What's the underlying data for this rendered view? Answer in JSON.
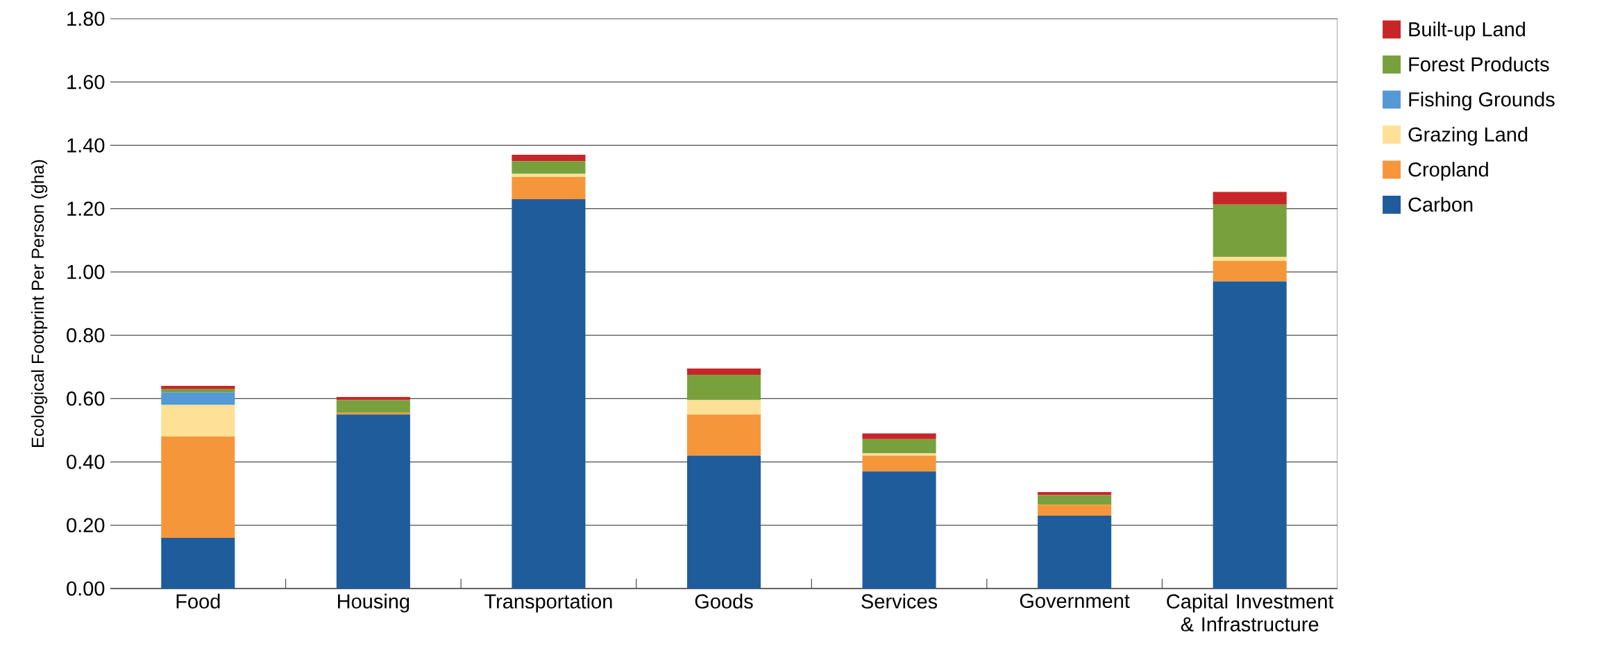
{
  "chart_data": {
    "type": "bar",
    "stacked": true,
    "ylabel": "Ecological Footprint Per Person (gha)",
    "categories": [
      "Food",
      "Housing",
      "Transportation",
      "Goods",
      "Services",
      "Government",
      "Capital Investment & Infrastructure"
    ],
    "series": [
      {
        "name": "Carbon",
        "color": "#1f5c9c",
        "values": [
          0.16,
          0.55,
          1.23,
          0.42,
          0.37,
          0.23,
          0.97
        ]
      },
      {
        "name": "Cropland",
        "color": "#f6963b",
        "values": [
          0.32,
          0.005,
          0.07,
          0.13,
          0.05,
          0.035,
          0.065
        ]
      },
      {
        "name": "Grazing Land",
        "color": "#fee097",
        "values": [
          0.1,
          0,
          0.01,
          0.045,
          0.007,
          0,
          0.013
        ]
      },
      {
        "name": "Fishing Grounds",
        "color": "#5599d4",
        "values": [
          0.04,
          0,
          0,
          0,
          0,
          0,
          0
        ]
      },
      {
        "name": "Forest Products",
        "color": "#78a13e",
        "values": [
          0.01,
          0.04,
          0.04,
          0.08,
          0.045,
          0.03,
          0.165
        ]
      },
      {
        "name": "Built-up Land",
        "color": "#c82528",
        "values": [
          0.01,
          0.01,
          0.02,
          0.02,
          0.018,
          0.01,
          0.04
        ]
      }
    ],
    "ylim": [
      0,
      1.8
    ],
    "yticks": [
      {
        "value": 0,
        "label": "0.00"
      },
      {
        "value": 0.2,
        "label": "0.20"
      },
      {
        "value": 0.4,
        "label": "0.40"
      },
      {
        "value": 0.6,
        "label": "0.60"
      },
      {
        "value": 0.8,
        "label": "0.80"
      },
      {
        "value": 1.0,
        "label": "1.00"
      },
      {
        "value": 1.2,
        "label": "1.20"
      },
      {
        "value": 1.4,
        "label": "1.40"
      },
      {
        "value": 1.6,
        "label": "1.60"
      },
      {
        "value": 1.8,
        "label": "1.80"
      }
    ],
    "grid": "y",
    "legend": "top right"
  }
}
